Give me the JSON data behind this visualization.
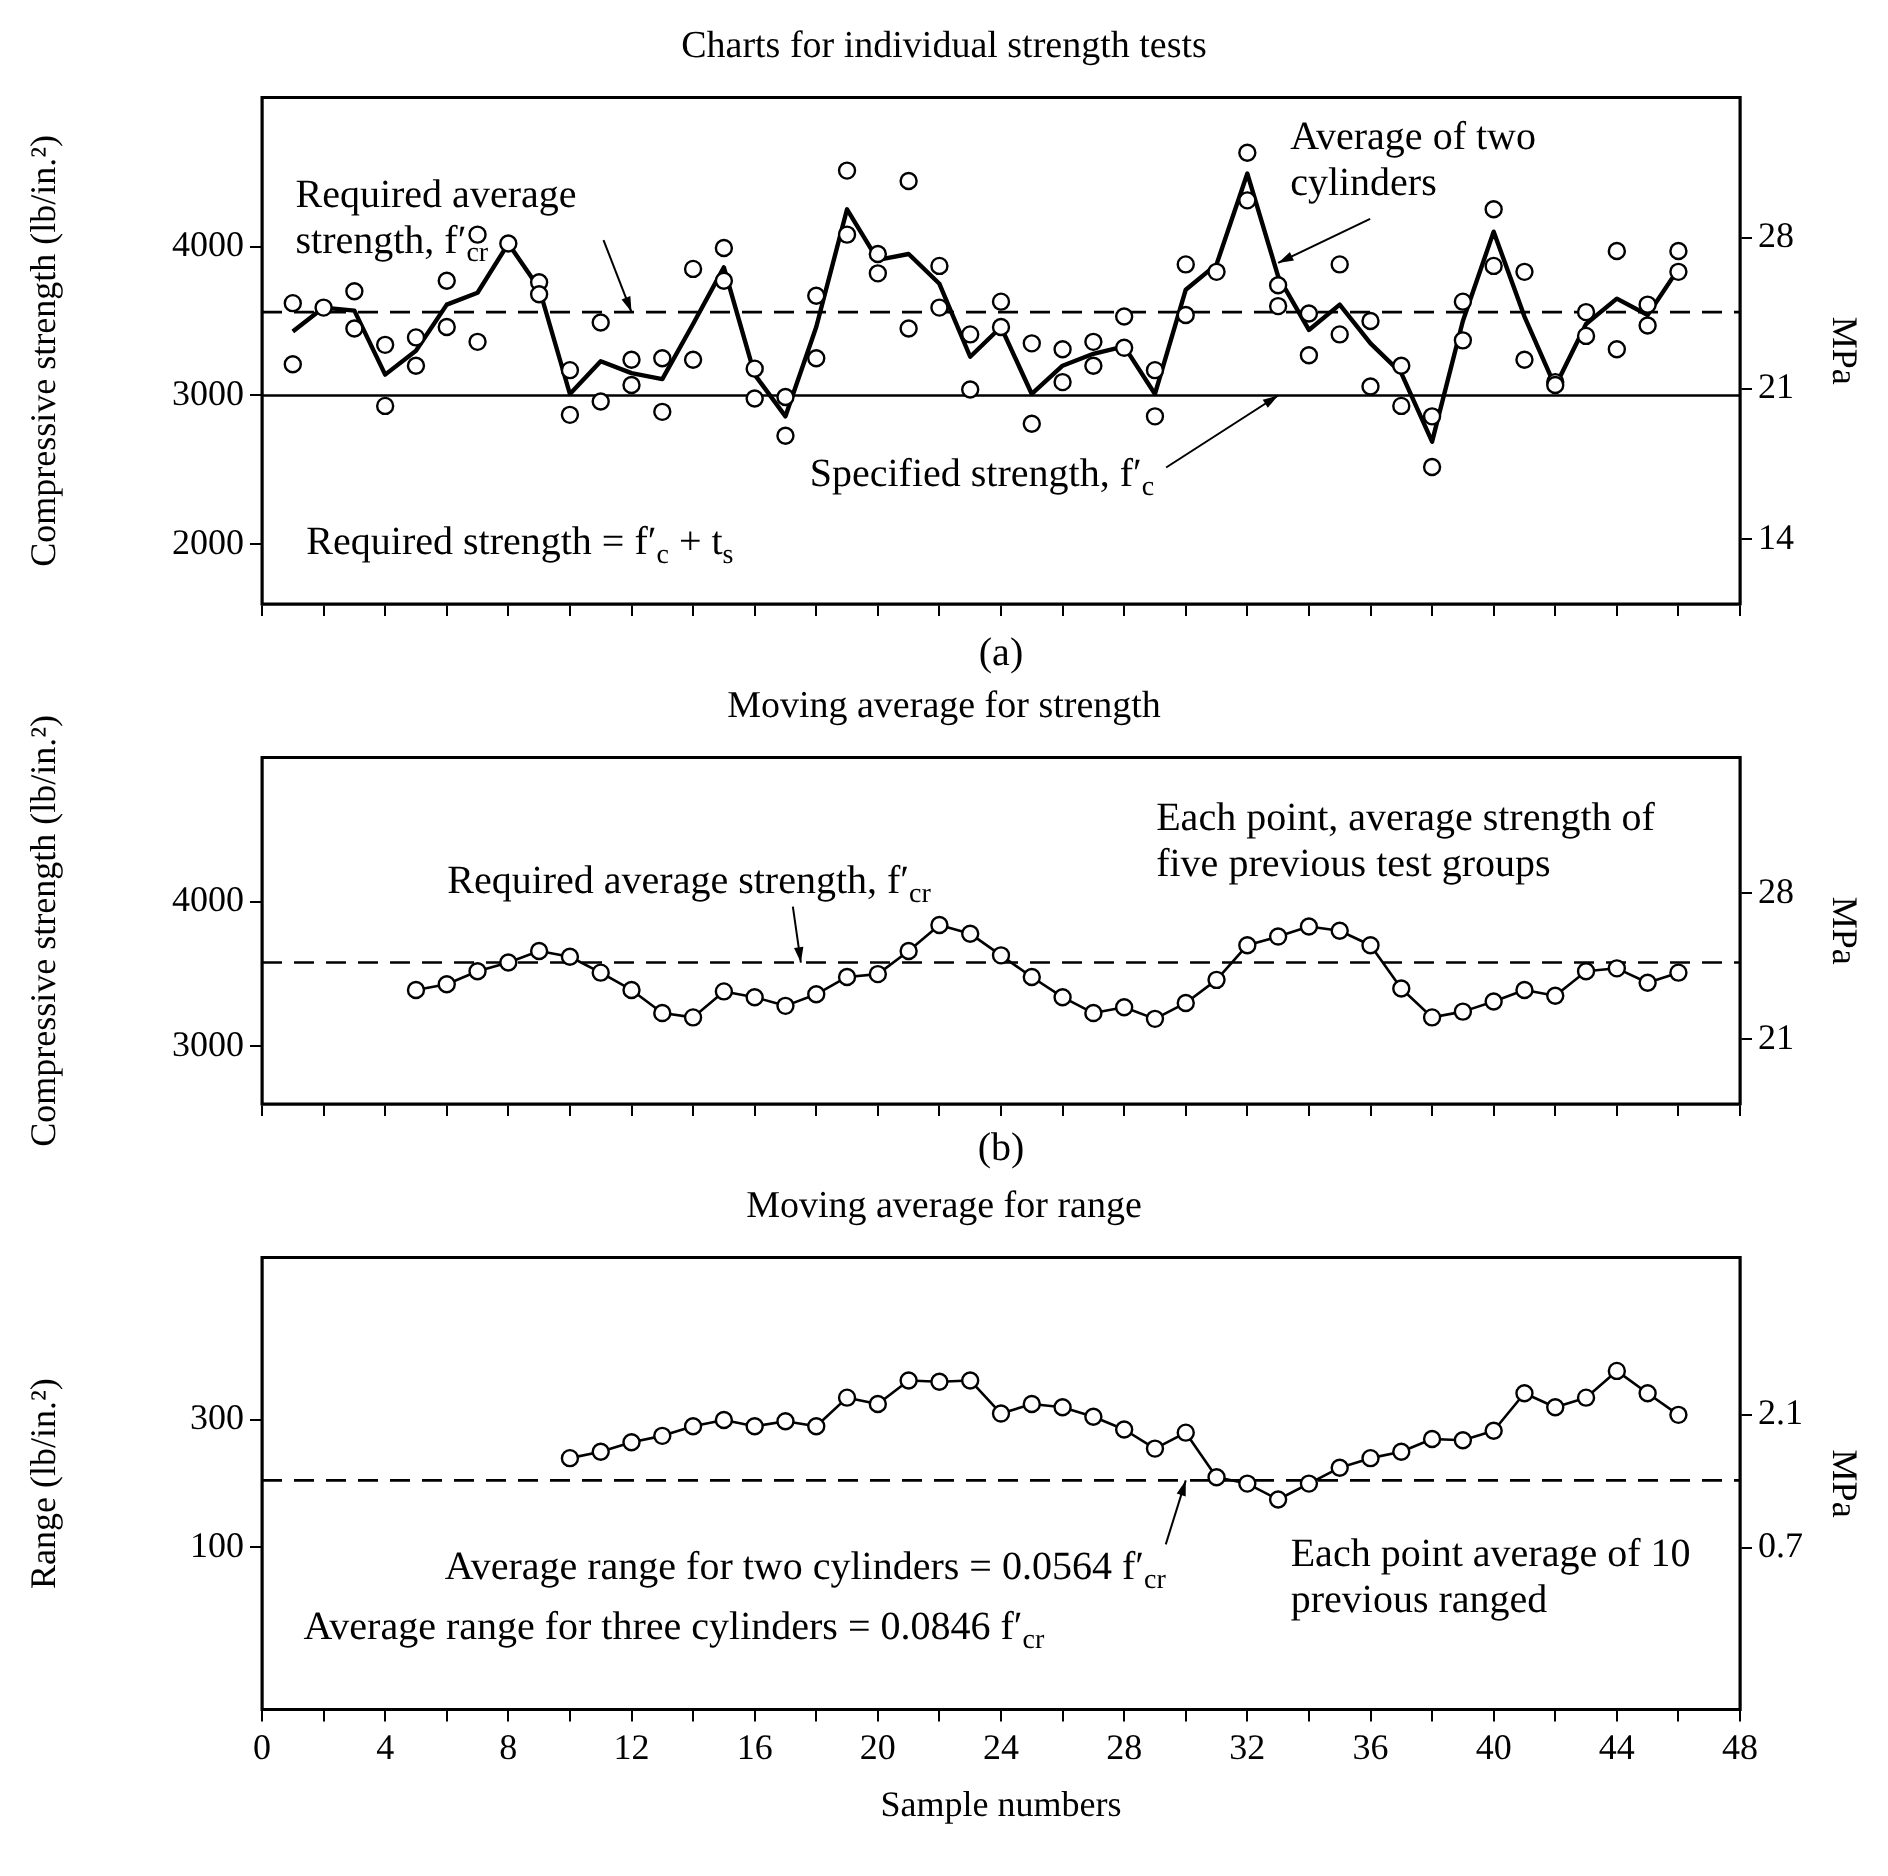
{
  "chart_data": [
    {
      "type": "line",
      "title": "Charts for individual strength tests",
      "ylabel": "Compressive strength (lb/in.²)",
      "y2label": "MPa",
      "xlim": [
        0,
        48
      ],
      "tick_labels": "y",
      "xticks": [
        0,
        {
          "value": 2,
          "label": null
        },
        4,
        {
          "value": 6,
          "label": null
        },
        8,
        {
          "value": 10,
          "label": null
        },
        12,
        {
          "value": 14,
          "label": null
        },
        16,
        {
          "value": 18,
          "label": null
        },
        20,
        {
          "value": 22,
          "label": null
        },
        24,
        {
          "value": 26,
          "label": null
        },
        28,
        {
          "value": 30,
          "label": null
        },
        32,
        {
          "value": 34,
          "label": null
        },
        36,
        {
          "value": 38,
          "label": null
        },
        40,
        {
          "value": 42,
          "label": null
        },
        44,
        {
          "value": 46,
          "label": null
        },
        48
      ],
      "ylim": [
        1600,
        5000
      ],
      "yticks": [
        2000,
        3000,
        4000
      ],
      "y2lim": [
        11,
        34.5
      ],
      "y2ticks": [
        14,
        21,
        28
      ],
      "series": [
        {
          "type": "scatter",
          "color": "#000000",
          "marker": "circle",
          "x": [
            1,
            1,
            2,
            3,
            3,
            4,
            4,
            5,
            5,
            6,
            6,
            7,
            7,
            8,
            9,
            9,
            10,
            10,
            11,
            11,
            12,
            12,
            13,
            13,
            14,
            14,
            15,
            15,
            16,
            16,
            17,
            17,
            18,
            18,
            19,
            19,
            20,
            20,
            21,
            21,
            22,
            22,
            23,
            23,
            24,
            24,
            25,
            25,
            26,
            26,
            27,
            27,
            28,
            28,
            29,
            29,
            30,
            30,
            31,
            32,
            32,
            33,
            33,
            34,
            34,
            35,
            35,
            36,
            36,
            37,
            37,
            38,
            38,
            39,
            39,
            40,
            40,
            41,
            41,
            42,
            42,
            43,
            43,
            44,
            44,
            45,
            45,
            46,
            46
          ],
          "values": [
            3620,
            3210,
            3590,
            3700,
            3450,
            3340,
            2930,
            3390,
            3200,
            3770,
            3460,
            4080,
            3360,
            4020,
            3760,
            3680,
            3170,
            2870,
            3490,
            2960,
            3240,
            3070,
            3250,
            2890,
            3850,
            3240,
            3990,
            3770,
            3180,
            2980,
            2990,
            2730,
            3670,
            3250,
            4510,
            4080,
            3950,
            3820,
            4440,
            3450,
            3870,
            3590,
            3410,
            3040,
            3630,
            3460,
            3350,
            2810,
            3310,
            3090,
            3360,
            3200,
            3530,
            3320,
            3170,
            2860,
            3880,
            3540,
            3830,
            4630,
            4310,
            3740,
            3600,
            3550,
            3270,
            3880,
            3410,
            3500,
            3060,
            3200,
            2930,
            2860,
            2520,
            3630,
            3370,
            4250,
            3870,
            3830,
            3240,
            3090,
            3070,
            3560,
            3400,
            3970,
            3310,
            3610,
            3470,
            3970,
            3830
          ]
        },
        {
          "type": "line",
          "color": "#000000",
          "marker": "none",
          "x": [
            1,
            2,
            3,
            4,
            5,
            6,
            7,
            8,
            9,
            10,
            11,
            12,
            13,
            14,
            15,
            16,
            17,
            18,
            19,
            20,
            21,
            22,
            23,
            24,
            25,
            26,
            27,
            28,
            29,
            30,
            31,
            32,
            33,
            34,
            35,
            36,
            37,
            38,
            39,
            40,
            41,
            42,
            43,
            44,
            45,
            46
          ],
          "values": [
            3430,
            3590,
            3570,
            3140,
            3300,
            3610,
            3690,
            4020,
            3720,
            3010,
            3230,
            3150,
            3110,
            3480,
            3860,
            3140,
            2860,
            3460,
            4250,
            3910,
            3950,
            3750,
            3260,
            3460,
            3010,
            3200,
            3280,
            3330,
            3010,
            3710,
            3880,
            4490,
            3800,
            3440,
            3610,
            3350,
            3150,
            2690,
            3500,
            4100,
            3530,
            3060,
            3480,
            3650,
            3540,
            3850
          ]
        }
      ],
      "ref_lines": [
        {
          "axis": "y",
          "value": 3560,
          "line_style": "dashed"
        },
        {
          "axis": "y",
          "value": 3000,
          "line_style": "solid"
        }
      ],
      "annotations": [
        {
          "text": "Required average strength, f′$_{cr}$",
          "x": 12,
          "y": 3560
        },
        {
          "text": "Average of two cylinders",
          "x": 33,
          "y": 3890
        },
        {
          "text": "Specified strength, f′$_{c}$",
          "x": 33,
          "y": 3000
        },
        "Required strength = f′$_{c}$ + t$_{s}$",
        "(a)"
      ]
    },
    {
      "type": "line",
      "title": "Moving average for strength",
      "ylabel": "Compressive strength (lb/in.²)",
      "y2label": "MPa",
      "xlim": [
        0,
        48
      ],
      "tick_labels": "y",
      "xticks": [
        0,
        {
          "value": 2,
          "label": null
        },
        4,
        {
          "value": 6,
          "label": null
        },
        8,
        {
          "value": 10,
          "label": null
        },
        12,
        {
          "value": 14,
          "label": null
        },
        16,
        {
          "value": 18,
          "label": null
        },
        20,
        {
          "value": 22,
          "label": null
        },
        24,
        {
          "value": 26,
          "label": null
        },
        28,
        {
          "value": 30,
          "label": null
        },
        32,
        {
          "value": 34,
          "label": null
        },
        36,
        {
          "value": 38,
          "label": null
        },
        40,
        {
          "value": 42,
          "label": null
        },
        44,
        {
          "value": 46,
          "label": null
        },
        48
      ],
      "ylim": [
        2600,
        5000
      ],
      "yticks": [
        3000,
        4000
      ],
      "y2lim": [
        17.9,
        34.5
      ],
      "y2ticks": [
        21,
        28
      ],
      "series": [
        {
          "type": "line",
          "color": "#000000",
          "marker": "circle",
          "x": [
            5,
            6,
            7,
            8,
            9,
            10,
            11,
            12,
            13,
            14,
            15,
            16,
            17,
            18,
            19,
            20,
            21,
            22,
            23,
            24,
            25,
            26,
            27,
            28,
            29,
            30,
            31,
            32,
            33,
            34,
            35,
            36,
            37,
            38,
            39,
            40,
            41,
            42,
            43,
            44,
            45,
            46
          ],
          "values": [
            3390,
            3430,
            3520,
            3580,
            3660,
            3620,
            3510,
            3390,
            3230,
            3200,
            3380,
            3340,
            3280,
            3360,
            3480,
            3500,
            3660,
            3840,
            3780,
            3630,
            3480,
            3340,
            3230,
            3270,
            3190,
            3300,
            3460,
            3700,
            3760,
            3830,
            3800,
            3700,
            3400,
            3200,
            3240,
            3310,
            3390,
            3350,
            3520,
            3540,
            3440,
            3510
          ]
        }
      ],
      "ref_lines": [
        {
          "axis": "y",
          "value": 3580,
          "line_style": "dashed"
        }
      ],
      "annotations": [
        {
          "text": "Required average strength, f′$_{cr}$",
          "x": 17.5,
          "y": 3580
        },
        "Each point, average strength of five previous test groups",
        "(b)"
      ]
    },
    {
      "type": "line",
      "title": "Moving average for range",
      "xlabel": "Sample numbers",
      "ylabel": "Range (lb/in.²)",
      "y2label": "MPa",
      "xlim": [
        0,
        48
      ],
      "xticks": [
        0,
        {
          "value": 2,
          "label": null
        },
        4,
        {
          "value": 6,
          "label": null
        },
        8,
        {
          "value": 10,
          "label": null
        },
        12,
        {
          "value": 14,
          "label": null
        },
        16,
        {
          "value": 18,
          "label": null
        },
        20,
        {
          "value": 22,
          "label": null
        },
        24,
        {
          "value": 26,
          "label": null
        },
        28,
        {
          "value": 30,
          "label": null
        },
        32,
        {
          "value": 34,
          "label": null
        },
        36,
        {
          "value": 38,
          "label": null
        },
        40,
        {
          "value": 42,
          "label": null
        },
        44,
        {
          "value": 46,
          "label": null
        },
        48
      ],
      "ylim": [
        -155,
        555
      ],
      "yticks": [
        100,
        300
      ],
      "y2lim": [
        -1.0,
        3.75
      ],
      "y2ticks": [
        0.7,
        2.1
      ],
      "series": [
        {
          "type": "line",
          "color": "#000000",
          "marker": "circle",
          "x": [
            10,
            11,
            12,
            13,
            14,
            15,
            16,
            17,
            18,
            19,
            20,
            21,
            22,
            23,
            24,
            25,
            26,
            27,
            28,
            29,
            30,
            31,
            32,
            33,
            34,
            35,
            36,
            37,
            38,
            39,
            40,
            41,
            42,
            43,
            44,
            45,
            46
          ],
          "values": [
            240,
            250,
            265,
            275,
            290,
            300,
            290,
            298,
            290,
            335,
            325,
            362,
            360,
            362,
            310,
            325,
            320,
            305,
            285,
            255,
            280,
            210,
            200,
            175,
            200,
            225,
            240,
            250,
            270,
            268,
            283,
            342,
            320,
            335,
            377,
            342,
            308
          ]
        }
      ],
      "ref_lines": [
        {
          "axis": "y",
          "value": 205,
          "line_style": "dashed"
        }
      ],
      "annotations": [
        {
          "text": "Average range for two cylinders = 0.0564 f′$_{cr}$",
          "x": 30,
          "y": 205
        },
        "Average range for three cylinders = 0.0846 f′$_{cr}$",
        "Each point average of 10 previous ranged"
      ]
    }
  ]
}
